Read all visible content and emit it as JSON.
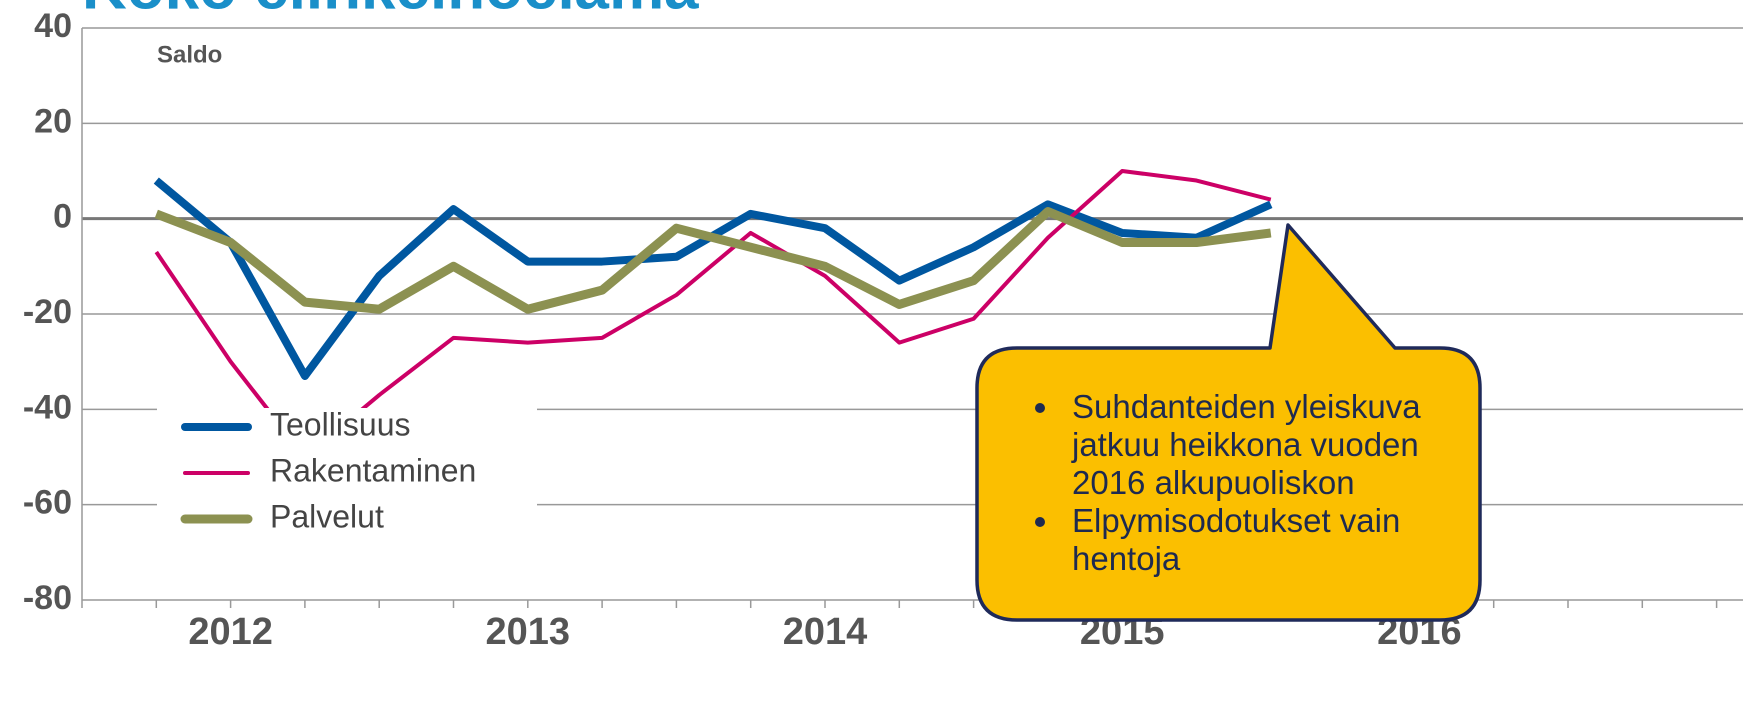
{
  "chart_data": {
    "type": "line",
    "title": "Koko elinkeinoelämä",
    "y_annotation": "Saldo",
    "categories": [
      null,
      null,
      null,
      null,
      null,
      null,
      null,
      null,
      null,
      null,
      null,
      null,
      null,
      null,
      null,
      null
    ],
    "x_groups": [
      "2012",
      "2013",
      "2014",
      "2015",
      "2016"
    ],
    "series": [
      {
        "name": "Teollisuus",
        "color": "#0057a0",
        "values": [
          8,
          -5,
          -33,
          -12,
          2,
          -9,
          -9,
          -8,
          1,
          -2,
          -13,
          -6,
          3,
          -3,
          -4,
          3
        ]
      },
      {
        "name": "Rakentaminen",
        "color": "#cc0066",
        "values": [
          -7,
          -30,
          -50,
          -37,
          -25,
          -26,
          -25,
          -16,
          -3,
          -12,
          -26,
          -21,
          -4,
          10,
          8,
          4
        ]
      },
      {
        "name": "Palvelut",
        "color": "#8c9151",
        "values": [
          1,
          -5,
          -17.5,
          -19,
          -10,
          -19,
          -15,
          -2,
          -6,
          -10,
          -18,
          -13,
          1.5,
          -5,
          -5,
          -3
        ]
      }
    ],
    "ylim": [
      -80,
      40
    ],
    "yticks": [
      -80,
      -60,
      -40,
      -20,
      0,
      20,
      40
    ],
    "grid": true,
    "callout": [
      "Suhdanteiden yleiskuva jatkuu heikkona vuoden 2016 alkupuoliskon",
      "Elpymisodotukset vain hentoja"
    ]
  }
}
